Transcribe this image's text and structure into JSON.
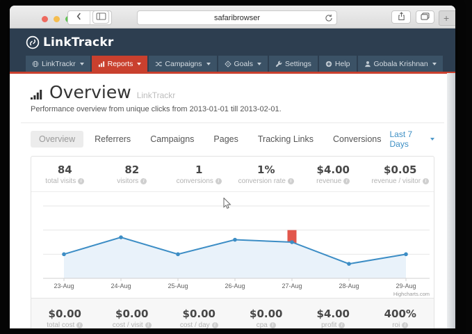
{
  "browser": {
    "url": "safaribrowser",
    "new_tab_label": "+",
    "traffic_colors": [
      "#ee6a5f",
      "#f5bd4f",
      "#61c554"
    ],
    "icons": [
      "back-chevron",
      "forward-chevron",
      "sidebar",
      "refresh",
      "share",
      "tabs-overview",
      "new-tab"
    ]
  },
  "header": {
    "logo_text": "LinkTrackr",
    "nav_items": [
      {
        "label": "LinkTrackr",
        "icon": "globe",
        "caret": true,
        "active": false
      },
      {
        "label": "Reports",
        "icon": "bar-chart",
        "caret": true,
        "active": true
      },
      {
        "label": "Campaigns",
        "icon": "shuffle",
        "caret": true,
        "active": false
      },
      {
        "label": "Goals",
        "icon": "target",
        "caret": true,
        "active": false
      },
      {
        "label": "Settings",
        "icon": "wrench",
        "caret": false,
        "active": false
      },
      {
        "label": "Help",
        "icon": "plus-circle",
        "caret": false,
        "active": false
      }
    ],
    "user": {
      "label": "Gobala Krishnan",
      "icon": "user",
      "caret": true
    },
    "colors": {
      "bg": "#2d3e50",
      "item_bg": "#3b5266",
      "active_bg": "#c9402e",
      "underline": "#c9402e"
    }
  },
  "page": {
    "title": "Overview",
    "title_suffix": "LinkTrackr",
    "subtitle": "Performance overview from unique clicks from 2013-01-01 till 2013-02-01.",
    "tabs": [
      {
        "label": "Overview",
        "active": true
      },
      {
        "label": "Referrers",
        "active": false
      },
      {
        "label": "Campaigns",
        "active": false
      },
      {
        "label": "Pages",
        "active": false
      },
      {
        "label": "Tracking Links",
        "active": false
      },
      {
        "label": "Conversions",
        "active": false
      }
    ],
    "date_range": "Last 7 Days"
  },
  "stats_top": [
    {
      "value": "84",
      "label": "total visits"
    },
    {
      "value": "82",
      "label": "visitors"
    },
    {
      "value": "1",
      "label": "conversions"
    },
    {
      "value": "1%",
      "label": "conversion rate"
    },
    {
      "value": "$4.00",
      "label": "revenue"
    },
    {
      "value": "$0.05",
      "label": "revenue / visitor"
    }
  ],
  "stats_bottom": [
    {
      "value": "$0.00",
      "label": "total cost"
    },
    {
      "value": "$0.00",
      "label": "cost / visit"
    },
    {
      "value": "$0.00",
      "label": "cost / day"
    },
    {
      "value": "$0.00",
      "label": "cpa"
    },
    {
      "value": "$4.00",
      "label": "profit"
    },
    {
      "value": "400%",
      "label": "roi"
    }
  ],
  "chart_data": {
    "type": "area",
    "categories": [
      "23-Aug",
      "24-Aug",
      "25-Aug",
      "26-Aug",
      "27-Aug",
      "28-Aug",
      "29-Aug"
    ],
    "series": [
      {
        "name": "visits",
        "type": "area",
        "color": "#3c8dc5",
        "fill": "#e9f2fa",
        "values": [
          10,
          17,
          10,
          16,
          15,
          6,
          10
        ]
      },
      {
        "name": "conversions",
        "type": "column",
        "color": "#e2574c",
        "axis_max": 1.5,
        "values": [
          0,
          0,
          0,
          0,
          1,
          0,
          0
        ]
      }
    ],
    "ylim": [
      0,
      30
    ],
    "grid": true,
    "legend": "none",
    "credits": "Highcharts.com"
  }
}
